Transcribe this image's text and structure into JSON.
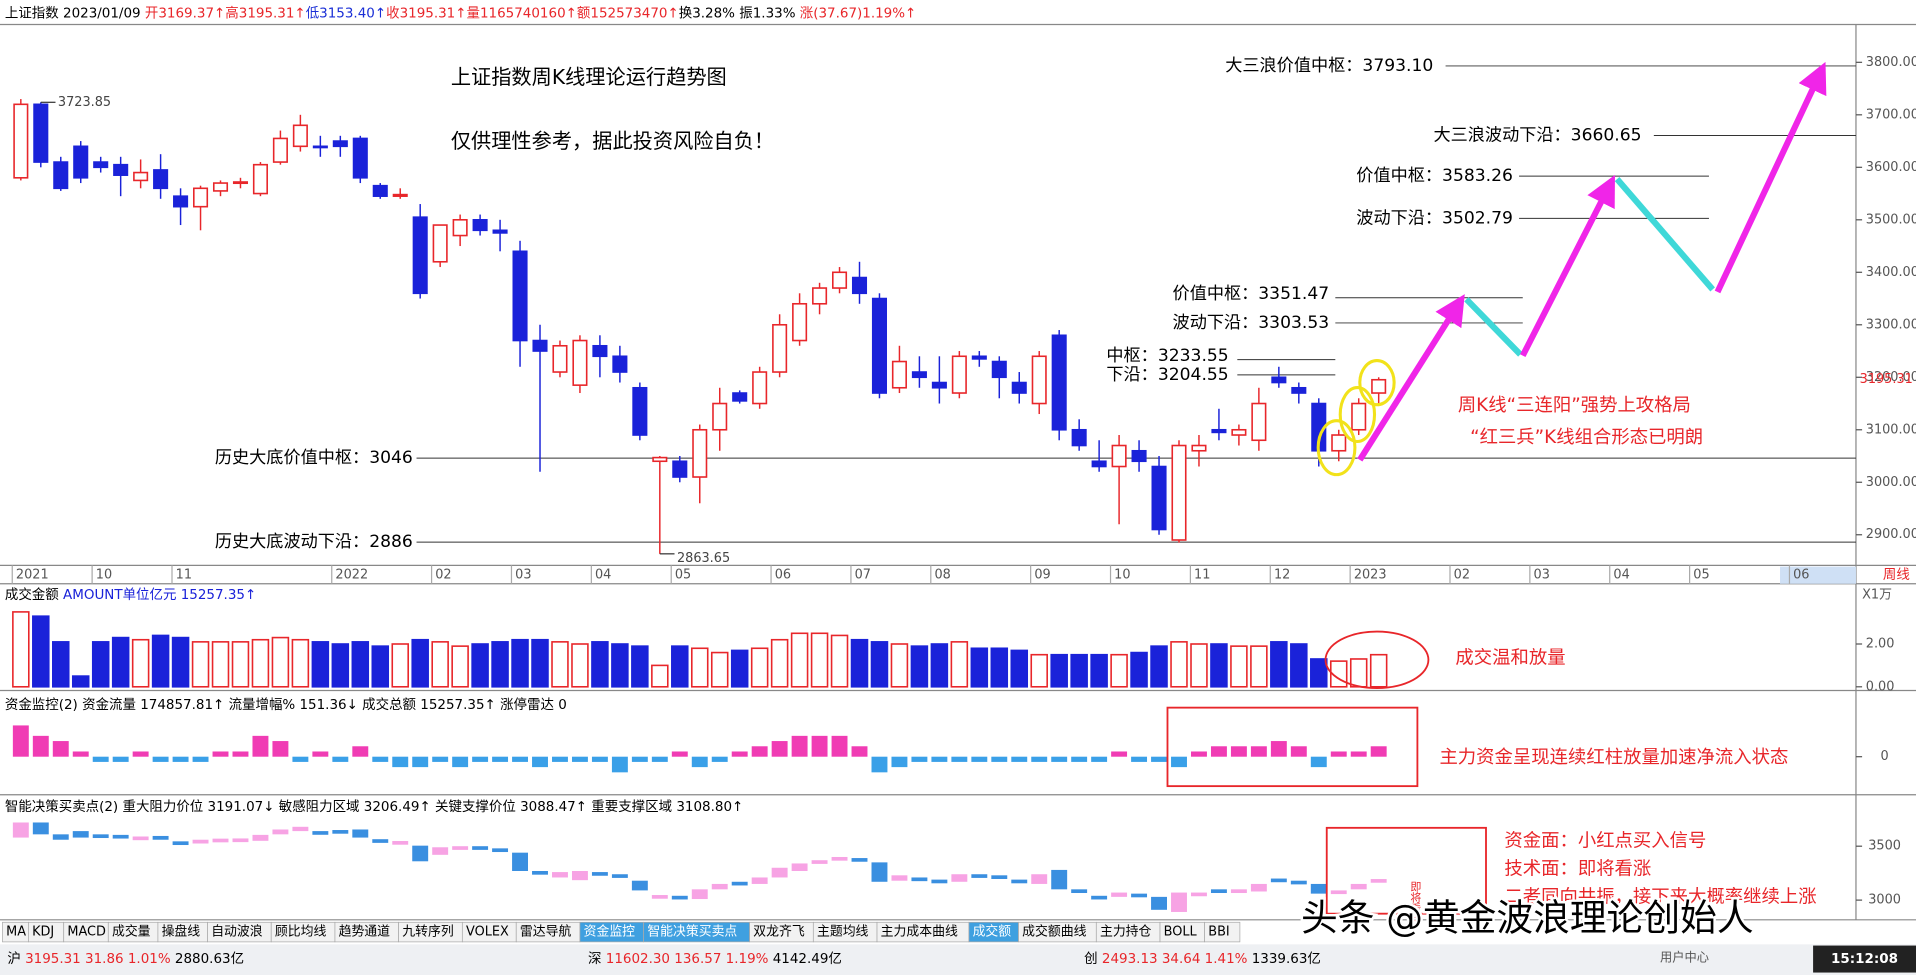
{
  "header": [
    {
      "text": "上证指数",
      "color": "#000000"
    },
    {
      "text": " 2023/01/09 ",
      "color": "#000000"
    },
    {
      "text": "开3169.37↑",
      "color": "#e8262a"
    },
    {
      "text": "高3195.31↑",
      "color": "#e8262a"
    },
    {
      "text": "低3153.40↑",
      "color": "#1a2fd6"
    },
    {
      "text": "收3195.31↑",
      "color": "#e8262a"
    },
    {
      "text": "量1165740160↑",
      "color": "#e8262a"
    },
    {
      "text": "额152573470↑",
      "color": "#e8262a"
    },
    {
      "text": "换3.28% ",
      "color": "#000000"
    },
    {
      "text": "振1.33% ",
      "color": "#000000"
    },
    {
      "text": "涨(37.67)1.19%↑",
      "color": "#e8262a"
    }
  ],
  "chart_data": {
    "type": "candlestick",
    "title": "上证指数周K线理论运行趋势图",
    "subtitle": "仅供理性参考，据此投资风险自负！",
    "up_color": "#e8262a",
    "down_color": "#1a22d9",
    "categories": [
      "2021",
      null,
      null,
      null,
      "10",
      null,
      null,
      null,
      "11",
      null,
      null,
      null,
      null,
      null,
      null,
      null,
      "2022",
      null,
      null,
      null,
      null,
      "02",
      null,
      null,
      null,
      "03",
      null,
      null,
      null,
      "04",
      null,
      null,
      null,
      "05",
      null,
      null,
      null,
      null,
      "06",
      null,
      null,
      null,
      "07",
      null,
      null,
      null,
      "08",
      null,
      null,
      null,
      null,
      "09",
      null,
      null,
      null,
      "10",
      null,
      null,
      null,
      "11",
      null,
      null,
      null,
      "12",
      null,
      null,
      null,
      "2023",
      null,
      null,
      null,
      null,
      "02",
      null,
      null,
      null,
      "03",
      null,
      null,
      null,
      "04",
      null,
      null,
      null,
      "05",
      null,
      null,
      null,
      null,
      "06",
      null,
      null
    ],
    "period_label": "周线",
    "open": [
      3580,
      3720,
      3610,
      3640,
      3610,
      3605,
      3575,
      3595,
      3545,
      3525,
      3555,
      3570,
      3550,
      3610,
      3640,
      3640,
      3650,
      3655,
      3565,
      3545,
      3505,
      3420,
      3470,
      3500,
      3480,
      3440,
      3270,
      3210,
      3185,
      3260,
      3240,
      3180,
      3040,
      3040,
      3010,
      3100,
      3170,
      3150,
      3210,
      3270,
      3340,
      3370,
      3390,
      3350,
      3180,
      3210,
      3190,
      3170,
      3240,
      3230,
      3190,
      3150,
      3280,
      3100,
      3040,
      3030,
      3060,
      3030,
      2890,
      3060,
      3100,
      3090,
      3080,
      3200,
      3180,
      3150,
      3060,
      3100,
      3170,
      null,
      null,
      null,
      null,
      null,
      null,
      null,
      null,
      null,
      null,
      null,
      null,
      null,
      null,
      null,
      null,
      null,
      null,
      null,
      null,
      null,
      null,
      null
    ],
    "high": [
      3730,
      3723.85,
      3620,
      3650,
      3620,
      3620,
      3615,
      3625,
      3560,
      3565,
      3575,
      3580,
      3610,
      3670,
      3700,
      3660,
      3660,
      3660,
      3570,
      3560,
      3530,
      3490,
      3510,
      3510,
      3500,
      3460,
      3300,
      3270,
      3280,
      3280,
      3260,
      3190,
      3050,
      3050,
      3110,
      3180,
      3175,
      3220,
      3320,
      3360,
      3380,
      3410,
      3420,
      3360,
      3260,
      3240,
      3240,
      3250,
      3250,
      3240,
      3210,
      3250,
      3290,
      3120,
      3080,
      3090,
      3080,
      3050,
      3080,
      3090,
      3140,
      3110,
      3180,
      3220,
      3190,
      3160,
      3100,
      3160,
      3200,
      null,
      null,
      null,
      null,
      null,
      null,
      null,
      null,
      null,
      null,
      null,
      null,
      null,
      null,
      null,
      null,
      null,
      null,
      null,
      null,
      null,
      null,
      null
    ],
    "low": [
      3575,
      3600,
      3555,
      3570,
      3590,
      3545,
      3560,
      3540,
      3490,
      3480,
      3545,
      3560,
      3545,
      3605,
      3630,
      3620,
      3620,
      3570,
      3540,
      3540,
      3350,
      3410,
      3450,
      3470,
      3440,
      3220,
      3020,
      3200,
      3170,
      3200,
      3190,
      3080,
      2863.65,
      3000,
      2960,
      3060,
      3150,
      3140,
      3200,
      3260,
      3320,
      3360,
      3340,
      3160,
      3170,
      3180,
      3150,
      3160,
      3220,
      3160,
      3150,
      3130,
      3080,
      3060,
      3020,
      2920,
      3020,
      2900,
      2885,
      3030,
      3080,
      3070,
      3060,
      3180,
      3150,
      3030,
      3040,
      3090,
      3150,
      null,
      null,
      null,
      null,
      null,
      null,
      null,
      null,
      null,
      null,
      null,
      null,
      null,
      null,
      null,
      null,
      null,
      null,
      null,
      null,
      null,
      null,
      null
    ],
    "close": [
      3720,
      3610,
      3560,
      3580,
      3600,
      3585,
      3590,
      3560,
      3525,
      3560,
      3570,
      3572,
      3605,
      3655,
      3680,
      3638,
      3640,
      3580,
      3545,
      3548,
      3360,
      3490,
      3500,
      3480,
      3475,
      3270,
      3250,
      3260,
      3270,
      3240,
      3210,
      3090,
      3047,
      3010,
      3100,
      3150,
      3155,
      3210,
      3300,
      3340,
      3370,
      3400,
      3360,
      3170,
      3230,
      3200,
      3180,
      3240,
      3235,
      3200,
      3170,
      3240,
      3100,
      3070,
      3030,
      3070,
      3040,
      2910,
      3070,
      3070,
      3095,
      3100,
      3150,
      3190,
      3170,
      3060,
      3090,
      3150,
      3195.31,
      null,
      null,
      null,
      null,
      null,
      null,
      null,
      null,
      null,
      null,
      null,
      null,
      null,
      null,
      null,
      null,
      null,
      null,
      null,
      null,
      null,
      null,
      null
    ],
    "ylim": [
      2844,
      3872
    ],
    "yticks": [
      {
        "value": 3800,
        "label": "3800.00"
      },
      {
        "value": 3700,
        "label": "3700.00"
      },
      {
        "value": 3600,
        "label": "3600.00"
      },
      {
        "value": 3500,
        "label": "3500.00"
      },
      {
        "value": 3400,
        "label": "3400.00"
      },
      {
        "value": 3300,
        "label": "3300.00"
      },
      {
        "value": 3200,
        "label": "3200.00"
      },
      {
        "value": 3100,
        "label": "3100.00"
      },
      {
        "value": 3000,
        "label": "3000.00"
      },
      {
        "value": 2900,
        "label": "2900.00"
      }
    ],
    "last_price": {
      "value": 3195.31,
      "label": "3195.31"
    },
    "extremes": [
      {
        "value": 3723.85,
        "label": "3723.85"
      },
      {
        "value": 2863.65,
        "label": "2863.65"
      }
    ],
    "levels": [
      {
        "text": "大三浪价值中枢：3793.10",
        "value": 3793.1
      },
      {
        "text": "大三浪波动下沿：3660.65",
        "value": 3660.65
      },
      {
        "text": "价值中枢：3583.26",
        "value": 3583.26
      },
      {
        "text": "波动下沿：3502.79",
        "value": 3502.79
      },
      {
        "text": "价值中枢：3351.47",
        "value": 3351.47
      },
      {
        "text": "波动下沿：3303.53",
        "value": 3303.53
      },
      {
        "text": "中枢：3233.55",
        "value": 3233.55
      },
      {
        "text": "下沿：3204.55",
        "value": 3204.55
      },
      {
        "text": "历史大底价值中枢：3046",
        "value": 3046
      },
      {
        "text": "历史大底波动下沿：2886",
        "value": 2886
      }
    ],
    "annotations": [
      "周K线“三连阳”强势上攻格局",
      "“红三兵”K线组合形态已明朗"
    ]
  },
  "volume_panel": {
    "type": "bar",
    "header": [
      {
        "text": "成交金额  ",
        "color": "#000000"
      },
      {
        "text": "AMOUNT单位亿元 15257.35↑",
        "color": "#1a22d9"
      }
    ],
    "scale_label": "X1万",
    "values": [
      3.5,
      3.3,
      2.1,
      0.5,
      2.1,
      2.3,
      2.2,
      2.4,
      2.3,
      2.1,
      2.1,
      2.1,
      2.2,
      2.3,
      2.2,
      2.1,
      2.0,
      2.1,
      1.9,
      2.0,
      2.2,
      2.1,
      1.9,
      2.0,
      2.1,
      2.2,
      2.2,
      2.1,
      2.0,
      2.1,
      2.0,
      1.9,
      1.0,
      1.9,
      1.8,
      1.6,
      1.7,
      1.8,
      2.2,
      2.5,
      2.5,
      2.4,
      2.2,
      2.1,
      2.0,
      1.9,
      2.0,
      2.1,
      1.8,
      1.8,
      1.7,
      1.5,
      1.5,
      1.5,
      1.5,
      1.5,
      1.6,
      1.9,
      2.1,
      2.0,
      2.0,
      1.9,
      1.9,
      2.1,
      2.0,
      1.3,
      1.2,
      1.3,
      1.5,
      null,
      null,
      null,
      null,
      null,
      null,
      null,
      null,
      null,
      null,
      null,
      null,
      null,
      null,
      null,
      null,
      null,
      null,
      null,
      null,
      null,
      null,
      null
    ],
    "ylim": [
      0,
      4.7
    ],
    "yticks": [
      {
        "value": 2,
        "label": "2.00"
      },
      {
        "value": 0,
        "label": "0.00"
      }
    ],
    "annotation": "成交温和放量"
  },
  "fund_panel": {
    "type": "bar",
    "header": [
      {
        "text": "资金监控(2)  ",
        "color": "#000000"
      },
      {
        "text": "资金流量 174857.81↑  ",
        "color": "#000000"
      },
      {
        "text": "流量增幅% 151.36↓  ",
        "color": "#000000"
      },
      {
        "text": "成交总额 15257.35↑  ",
        "color": "#000000"
      },
      {
        "text": "涨停雷达 0",
        "color": "#000000"
      }
    ],
    "pos_color": "#f03cb4",
    "neg_color": "#3aa0e8",
    "values": [
      30,
      20,
      15,
      5,
      -5,
      -5,
      5,
      -5,
      -5,
      -5,
      5,
      5,
      20,
      15,
      -5,
      5,
      -5,
      10,
      -5,
      -10,
      -10,
      -5,
      -10,
      -5,
      -5,
      -5,
      -10,
      -5,
      -5,
      -5,
      -15,
      -5,
      -5,
      5,
      -10,
      -5,
      5,
      10,
      15,
      20,
      20,
      20,
      10,
      -15,
      -10,
      -5,
      -5,
      -5,
      -5,
      -5,
      -5,
      -5,
      -5,
      -5,
      -5,
      5,
      -5,
      -5,
      -10,
      5,
      10,
      10,
      10,
      15,
      10,
      -10,
      5,
      5,
      10,
      null,
      null,
      null,
      null,
      null,
      null,
      null,
      null,
      null,
      null,
      null,
      null,
      null,
      null,
      null,
      null,
      null,
      null,
      null,
      null,
      null,
      null,
      null
    ],
    "ylim": [
      -40,
      40
    ],
    "yticks": [
      0
    ],
    "annotation": "主力资金呈现连续红柱放量加速净流入状态"
  },
  "decision_panel": {
    "header": [
      {
        "text": "智能决策买卖点(2)  ",
        "color": "#000000"
      },
      {
        "text": "重大阻力价位 3191.07↓  ",
        "color": "#000000"
      },
      {
        "text": "敏感阻力区域 3206.49↑  ",
        "color": "#000000"
      },
      {
        "text": "关键支撑价位 3088.47↑  ",
        "color": "#000000"
      },
      {
        "text": "重要支撑区域 3108.80↑",
        "color": "#000000"
      }
    ],
    "ylim": [
      2840,
      3750
    ],
    "yticks": [
      3500,
      3000
    ],
    "badge": "即将看涨",
    "annotations": [
      "资金面：小红点买入信号",
      "技术面：即将看涨",
      "二者同向共振，接下来大概率继续上涨"
    ]
  },
  "tabs": [
    "MA",
    "KDJ",
    "MACD",
    "成交量",
    "操盘线",
    "自动波浪",
    "顾比均线",
    "趋势通道",
    "九转序列",
    "VOLEX",
    "雷达导航",
    "资金监控",
    "智能决策买卖点",
    "双龙齐飞",
    "主题均线",
    "主力成本曲线",
    "成交额",
    "成交额曲线",
    "主力持仓",
    "BOLL",
    "BBI"
  ],
  "status": [
    [
      {
        "text": "沪",
        "color": "#000000"
      },
      {
        "text": " 3195.31",
        "color": "#e8262a"
      },
      {
        "text": "  31.86",
        "color": "#e8262a"
      },
      {
        "text": "  1.01%",
        "color": "#e8262a"
      },
      {
        "text": "  2880.63亿",
        "color": "#000000"
      }
    ],
    [
      {
        "text": "深",
        "color": "#000000"
      },
      {
        "text": " 11602.30",
        "color": "#e8262a"
      },
      {
        "text": "  136.57",
        "color": "#e8262a"
      },
      {
        "text": "  1.19%",
        "color": "#e8262a"
      },
      {
        "text": "  4142.49亿",
        "color": "#000000"
      }
    ],
    [
      {
        "text": "创",
        "color": "#000000"
      },
      {
        "text": " 2493.13",
        "color": "#e8262a"
      },
      {
        "text": "  34.64",
        "color": "#e8262a"
      },
      {
        "text": "  1.41%",
        "color": "#e8262a"
      },
      {
        "text": "  1339.63亿",
        "color": "#000000"
      }
    ]
  ],
  "user_center": "用户中心",
  "clock": "15:12:08",
  "watermark": "头条 @黄金波浪理论创始人"
}
